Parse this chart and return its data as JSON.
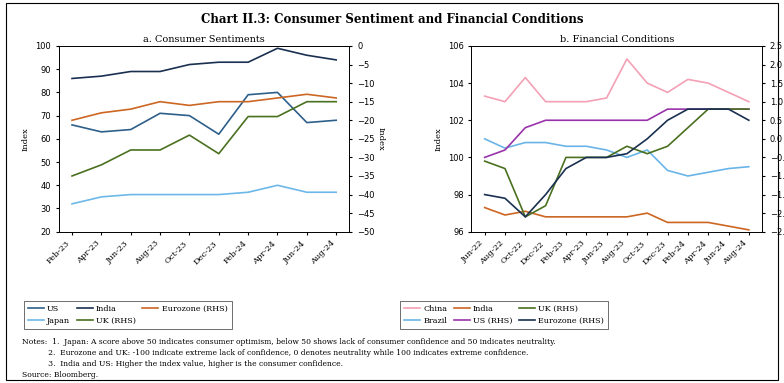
{
  "title": "Chart II.3: Consumer Sentiment and Financial Conditions",
  "panel_a": {
    "title": "a. Consumer Sentiments",
    "x_labels": [
      "Feb-23",
      "Apr-23",
      "Jun-23",
      "Aug-23",
      "Oct-23",
      "Dec-23",
      "Feb-24",
      "Apr-24",
      "Jun-24",
      "Aug-24"
    ],
    "ylim_left": [
      20,
      100
    ],
    "ylim_right": [
      -50,
      0
    ],
    "yticks_left": [
      20,
      30,
      40,
      50,
      60,
      70,
      80,
      90,
      100
    ],
    "yticks_right": [
      -50,
      -45,
      -40,
      -35,
      -30,
      -25,
      -20,
      -15,
      -10,
      -5,
      0
    ],
    "us_color": "#2e5f8a",
    "japan_color": "#6db8e8",
    "india_color": "#1a3050",
    "uk_color": "#4a7020",
    "eurozone_color": "#cc6622",
    "us_values": [
      66,
      63,
      64,
      71,
      70,
      62,
      79,
      80,
      67,
      68
    ],
    "japan_values": [
      32,
      35,
      36,
      36,
      36,
      36,
      37,
      40,
      37,
      37
    ],
    "india_values": [
      86,
      87,
      89,
      89,
      92,
      93,
      93,
      99,
      96,
      94
    ],
    "uk_rhs_values": [
      -35,
      -32,
      -28,
      -28,
      -24,
      -29,
      -19,
      -19,
      -15,
      -15
    ],
    "eurozone_rhs_values": [
      -20,
      -18,
      -17,
      -15,
      -16,
      -15,
      -15,
      -14,
      -13,
      -14
    ]
  },
  "panel_b": {
    "title": "b. Financial Conditions",
    "x_labels": [
      "Jun-22",
      "Aug-22",
      "Oct-22",
      "Dec-22",
      "Feb-23",
      "Apr-23",
      "Jun-23",
      "Aug-23",
      "Oct-23",
      "Dec-23",
      "Feb-24",
      "Apr-24",
      "Jun-24",
      "Aug-24"
    ],
    "ylim_left": [
      96,
      106
    ],
    "ylim_right": [
      -2.5,
      2.5
    ],
    "yticks_left": [
      96,
      98,
      100,
      102,
      104,
      106
    ],
    "yticks_right": [
      -2.5,
      -2.0,
      -1.5,
      -1.0,
      -0.5,
      0.0,
      0.5,
      1.0,
      1.5,
      2.0,
      2.5
    ],
    "china_color": "#f4a0b5",
    "brazil_color": "#6ab4e8",
    "india_color": "#cc6622",
    "us_rhs_color": "#9933aa",
    "uk_rhs_color": "#4a7020",
    "eurozone_rhs_color": "#1a3050",
    "china_values": [
      103.3,
      103.0,
      104.3,
      103.0,
      103.0,
      103.0,
      103.2,
      105.3,
      104.0,
      103.5,
      104.2,
      104.0,
      103.5,
      103.0
    ],
    "brazil_values": [
      101.0,
      100.5,
      100.8,
      100.8,
      100.6,
      100.6,
      100.4,
      100.0,
      100.4,
      99.3,
      99.0,
      99.2,
      99.4,
      99.5
    ],
    "india_values": [
      97.3,
      96.9,
      97.1,
      96.8,
      96.8,
      96.8,
      96.8,
      96.8,
      97.0,
      96.5,
      96.5,
      96.5,
      96.3,
      96.1
    ],
    "us_rhs_values": [
      -0.5,
      -0.3,
      0.3,
      0.5,
      0.5,
      0.5,
      0.5,
      0.5,
      0.5,
      0.8,
      0.8,
      0.8,
      0.8,
      0.8
    ],
    "uk_rhs_values": [
      -0.6,
      -0.8,
      -2.1,
      -1.8,
      -0.5,
      -0.5,
      -0.5,
      -0.2,
      -0.4,
      -0.2,
      0.3,
      0.8,
      0.8,
      0.8
    ],
    "eurozone_rhs_values": [
      -1.5,
      -1.6,
      -2.1,
      -1.5,
      -0.8,
      -0.5,
      -0.5,
      -0.4,
      0.0,
      0.5,
      0.8,
      0.8,
      0.8,
      0.5
    ]
  },
  "note_line1": "Notes:  1.  Japan: A score above 50 indicates consumer optimism, below 50 shows lack of consumer confidence and 50 indicates neutrality.",
  "note_line2": "           2.  Eurozone and UK: -100 indicate extreme lack of confidence, 0 denotes neutrality while 100 indicates extreme confidence.",
  "note_line3": "           3.  India and US: Higher the index value, higher is the consumer confidence.",
  "source": "Source: Bloomberg."
}
